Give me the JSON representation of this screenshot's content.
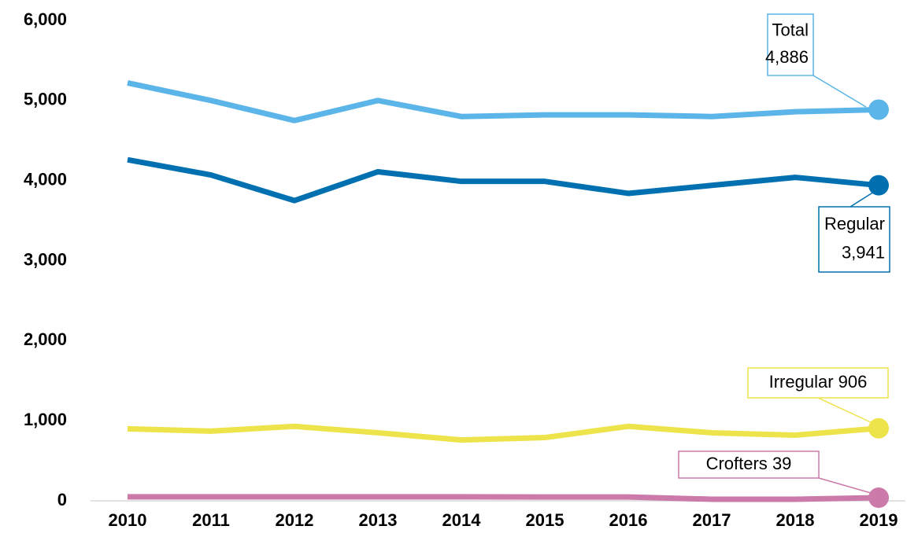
{
  "chart_data": {
    "type": "line",
    "categories": [
      "2010",
      "2011",
      "2012",
      "2013",
      "2014",
      "2015",
      "2016",
      "2017",
      "2018",
      "2019"
    ],
    "series": [
      {
        "name": "Total",
        "color": "#5bb5e8",
        "values": [
          5220,
          5000,
          4750,
          5000,
          4800,
          4820,
          4820,
          4800,
          4860,
          4886
        ],
        "value_labels": [
          null,
          null,
          null,
          null,
          null,
          null,
          null,
          null,
          null,
          "4,886"
        ]
      },
      {
        "name": "Regular",
        "color": "#0070b0",
        "values": [
          4260,
          4070,
          3750,
          4110,
          3990,
          3990,
          3840,
          3940,
          4040,
          3941
        ],
        "value_labels": [
          null,
          null,
          null,
          null,
          null,
          null,
          null,
          null,
          null,
          "3,941"
        ]
      },
      {
        "name": "Irregular",
        "color": "#ede34a",
        "values": [
          900,
          870,
          930,
          850,
          760,
          790,
          930,
          850,
          820,
          906
        ]
      },
      {
        "name": "Crofters",
        "color": "#cc7aaa",
        "values": [
          50,
          50,
          50,
          50,
          50,
          48,
          48,
          20,
          20,
          39
        ]
      }
    ],
    "ylim": [
      0,
      6000
    ],
    "yticks": [
      0,
      {
        "value": 1000,
        "label": "1,000"
      },
      {
        "value": 2000,
        "label": "2,000"
      },
      {
        "value": 3000,
        "label": "3,000"
      },
      {
        "value": 4000,
        "label": "4,000"
      },
      {
        "value": 5000,
        "label": "5,000"
      },
      {
        "value": 6000,
        "label": "6,000"
      }
    ],
    "grid": false
  }
}
